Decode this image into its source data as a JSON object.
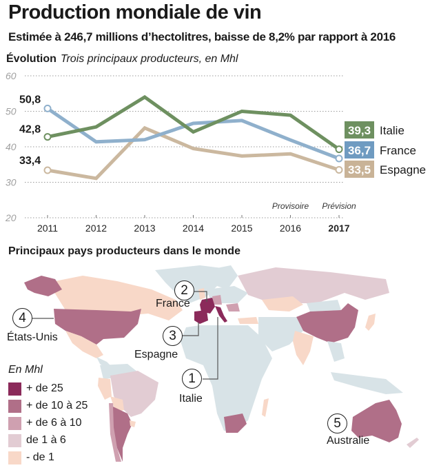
{
  "header": {
    "title": "Production mondiale de vin",
    "subtitle": "Estimée à 246,7 millions d’hectolitres, baisse de 8,2% par rapport à 2016"
  },
  "chart_section": {
    "heading": "Évolution",
    "heading_note": "Trois principaux producteurs, en Mhl"
  },
  "chart_data": {
    "type": "line",
    "title": "Évolution",
    "subtitle": "Trois principaux producteurs, en Mhl",
    "xlabel": "",
    "ylabel": "Mhl",
    "x": [
      "2011",
      "2012",
      "2013",
      "2014",
      "2015",
      "2016",
      "2017"
    ],
    "x_bold": [
      "2017"
    ],
    "x_annotations": [
      {
        "x": "2016",
        "text": "Provisoire"
      },
      {
        "x": "2017",
        "text": "Prévision"
      }
    ],
    "yticks": [
      20,
      30,
      40,
      50,
      60
    ],
    "ylim": [
      20,
      60
    ],
    "grid": true,
    "series": [
      {
        "name": "Italie",
        "color": "#6e9060",
        "values": [
          42.8,
          45.6,
          54.0,
          44.2,
          50.0,
          48.9,
          39.3
        ],
        "start_label": "42,8",
        "end_label": "39,3"
      },
      {
        "name": "France",
        "color": "#8fb0cc",
        "end_box_color": "#6f9bc1",
        "values": [
          50.8,
          41.4,
          42.0,
          46.6,
          47.4,
          41.9,
          36.7
        ],
        "start_label": "50,8",
        "end_label": "36,7"
      },
      {
        "name": "Espagne",
        "color": "#cbb89f",
        "end_box_color": "#c9b397",
        "values": [
          33.4,
          31.1,
          45.3,
          39.5,
          37.4,
          38.0,
          33.5
        ],
        "start_label": "33,4",
        "end_label": "33,5"
      }
    ]
  },
  "map_section": {
    "heading": "Principaux pays producteurs dans le monde",
    "legend_title": "En Mhl",
    "legend": [
      {
        "label": "+ de 25",
        "color": "#8b2a5a"
      },
      {
        "label": "+ de 10 à 25",
        "color": "#b06f88"
      },
      {
        "label": "+ de 6 à 10",
        "color": "#cfa0b0"
      },
      {
        "label": "de 1 à 6",
        "color": "#e2ccd3"
      },
      {
        "label": "- de 1",
        "color": "#f8d8c8"
      }
    ],
    "no_data_color": "#d8e3e7",
    "callouts": [
      {
        "rank": "1",
        "country": "Italie"
      },
      {
        "rank": "2",
        "country": "France"
      },
      {
        "rank": "3",
        "country": "Espagne"
      },
      {
        "rank": "4",
        "country": "États-Unis"
      },
      {
        "rank": "5",
        "country": "Australie"
      }
    ]
  }
}
